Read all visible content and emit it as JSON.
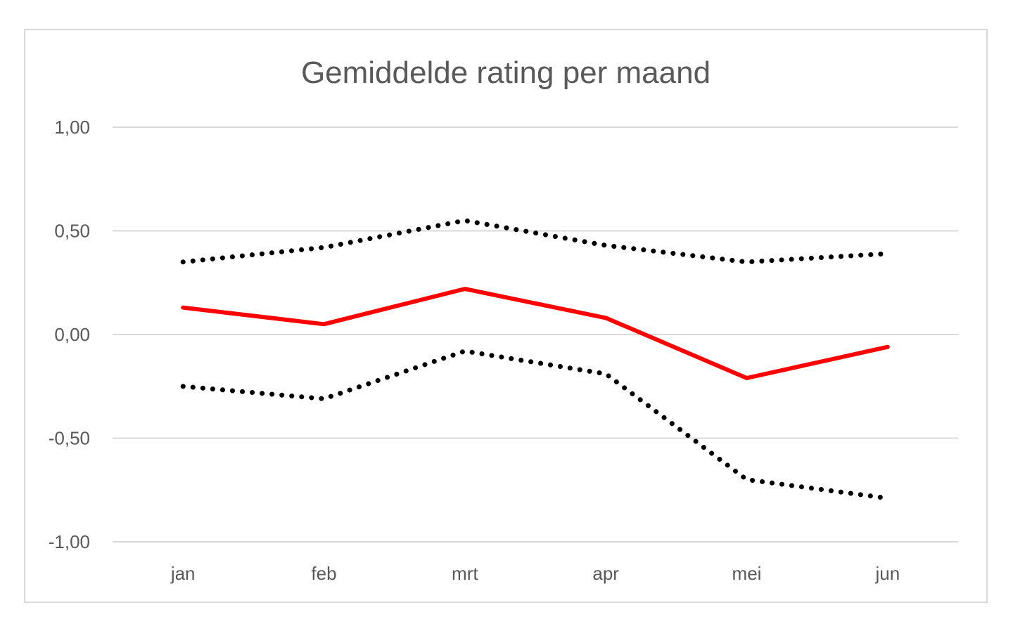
{
  "chart_data": {
    "type": "line",
    "title": "Gemiddelde rating per maand",
    "xlabel": "",
    "ylabel": "",
    "categories": [
      "jan",
      "feb",
      "mrt",
      "apr",
      "mei",
      "jun"
    ],
    "ylim": [
      -1.0,
      1.0
    ],
    "yticks": [
      1.0,
      0.5,
      0.0,
      -0.5,
      -1.0
    ],
    "ytick_labels": [
      "1,00",
      "0,50",
      "0,00",
      "-0,50",
      "-1,00"
    ],
    "grid": true,
    "legend": "none",
    "series": [
      {
        "values": [
          0.35,
          0.42,
          0.55,
          0.43,
          0.35,
          0.39
        ],
        "color": "#000000",
        "style": "dotted"
      },
      {
        "values": [
          0.13,
          0.05,
          0.22,
          0.08,
          -0.21,
          -0.06
        ],
        "color": "#ff0000",
        "style": "solid"
      },
      {
        "values": [
          -0.25,
          -0.31,
          -0.08,
          -0.19,
          -0.7,
          -0.79
        ],
        "color": "#000000",
        "style": "dotted"
      }
    ]
  }
}
